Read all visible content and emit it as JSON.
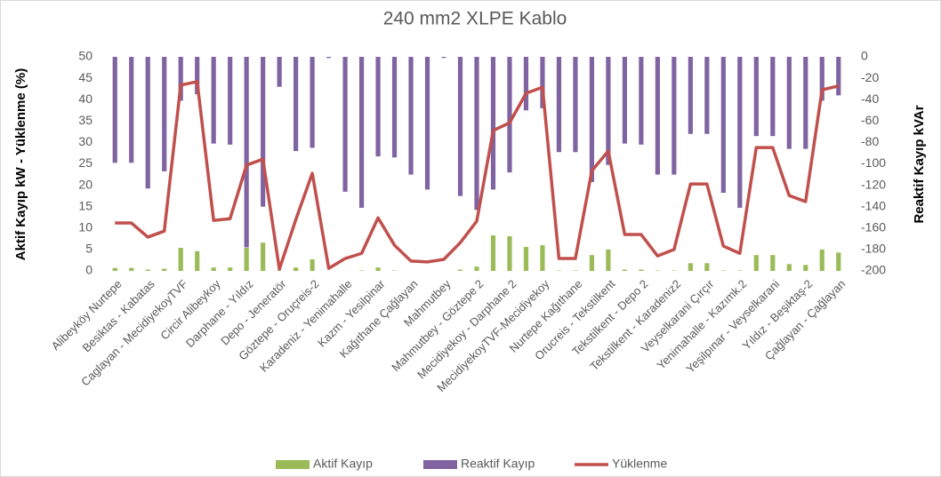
{
  "chart_data": {
    "type": "bar",
    "title": "240 mm2 XLPE Kablo",
    "ylabel": "Aktif Kayıp kW  -  Yüklenme (%)",
    "y2label": "Reaktif Kayıp kVAr",
    "categories": [
      "Alibeyköy Nurtepe",
      null,
      "Besiktas - Kabatas",
      null,
      "Caglayan - MecidiyekoyTVF",
      null,
      "Circir Alibeykoy",
      null,
      "Darphane - Yıldız",
      null,
      "Depo - Jeneratör",
      null,
      "Göztepe - Oruçreis-2",
      null,
      "Karadeniz - Yenimahalle",
      null,
      "Kazm - Yesilpinar",
      null,
      "Kağıthane Çağlayan",
      null,
      "Mahmutbey",
      null,
      "Mahmutbey - Göztepe 2",
      null,
      "Mecidiyekoy - Darphane 2",
      null,
      "MecidiyekoyTVF-Mecidiyekoy",
      null,
      "Nurtepe Kağıthane",
      null,
      "Orucreis - Tekstilkent",
      null,
      "Tekstilkent - Depo 2",
      null,
      "Tekstilkent - Karadeniz2",
      null,
      "Veyselkarani Çırçır",
      null,
      "Yenimahalle - Kazımk.2",
      null,
      "Yeşilpınar - Veyselkarani",
      null,
      "Yıldız - Beşiktaş-2",
      null,
      "Çağlayan - Çağlayan"
    ],
    "series": [
      {
        "name": "Aktif Kayıp",
        "type": "bar",
        "axis": "y",
        "color": "#9bbb59",
        "values": [
          0.7,
          0.7,
          0.3,
          0.5,
          5.4,
          4.6,
          0.8,
          0.8,
          5.4,
          6.6,
          0.1,
          0.8,
          2.7,
          0,
          0,
          0.1,
          0.8,
          0.1,
          0,
          0,
          0,
          0.3,
          1.0,
          8.3,
          8.1,
          5.6,
          6.0,
          0.1,
          0.1,
          3.7,
          5.0,
          0.3,
          0.3,
          0.1,
          0.1,
          1.8,
          1.8,
          0.1,
          0.1,
          3.7,
          3.7,
          1.6,
          1.4,
          5.0,
          4.3
        ]
      },
      {
        "name": "Reaktif Kayıp",
        "type": "bar",
        "axis": "y2",
        "color": "#8064a2",
        "values": [
          -99,
          -99,
          -123,
          -107,
          -41,
          -35,
          -81,
          -82,
          -178,
          -140,
          -28,
          -88,
          -85,
          -1,
          -126,
          -141,
          -93,
          -94,
          -110,
          -124,
          -1,
          -130,
          -143,
          -124,
          -108,
          -50,
          -48,
          -89,
          -89,
          -117,
          -101,
          -81,
          -82,
          -110,
          -110,
          -72,
          -72,
          -127,
          -141,
          -74,
          -74,
          -86,
          -86,
          -41,
          -36
        ]
      },
      {
        "name": "Yüklenme",
        "type": "line",
        "axis": "y",
        "color": "#c0504d",
        "values": [
          11.2,
          11.2,
          7.9,
          9.3,
          43.4,
          44.2,
          11.8,
          12.2,
          24.7,
          26.1,
          0.4,
          12.0,
          22.8,
          0.6,
          2.9,
          4.1,
          12.4,
          6.0,
          2.3,
          2.1,
          2.7,
          6.6,
          11.6,
          32.8,
          34.6,
          41.5,
          42.9,
          2.9,
          2.9,
          23.4,
          28.0,
          8.5,
          8.5,
          3.5,
          5.0,
          20.3,
          20.3,
          5.8,
          4.1,
          28.8,
          28.8,
          17.6,
          16.2,
          42.3,
          43.2
        ]
      }
    ],
    "ylim": [
      0,
      50
    ],
    "yticks": [
      0,
      5,
      10,
      15,
      20,
      25,
      30,
      35,
      40,
      45,
      50
    ],
    "y2lim": [
      -200,
      0
    ],
    "y2ticks": [
      -200,
      -180,
      -160,
      -140,
      -120,
      -100,
      -80,
      -60,
      -40,
      -20,
      0
    ],
    "grid": false,
    "legend": "bottom"
  }
}
